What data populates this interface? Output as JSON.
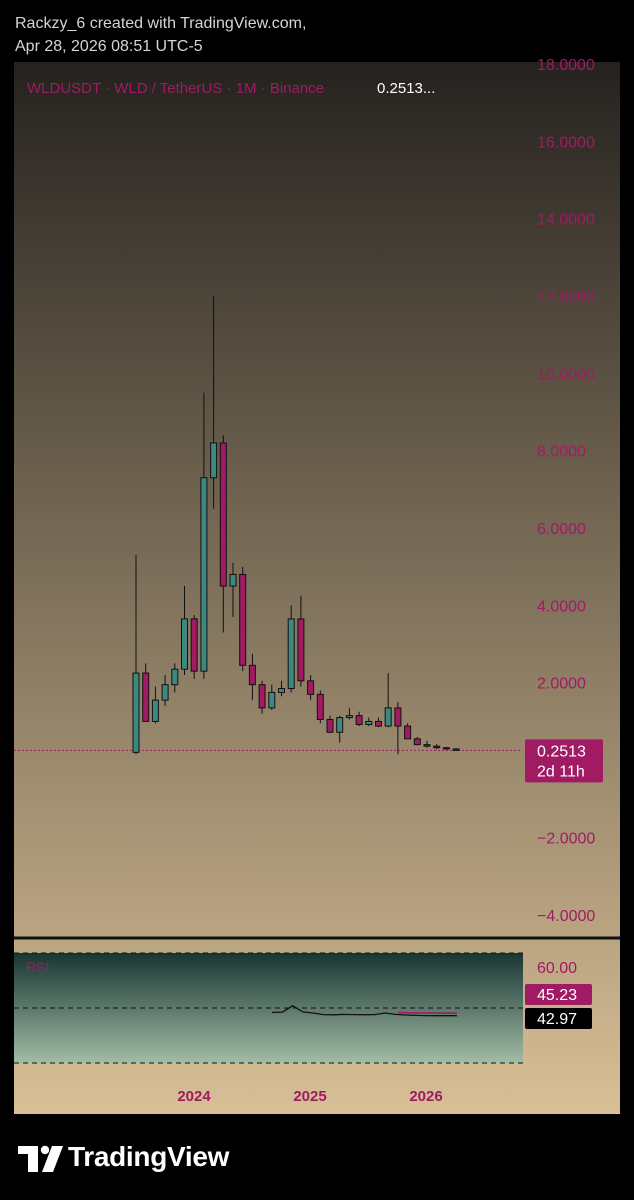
{
  "header": {
    "line1": "Rackzy_6 created with TradingView.com,",
    "line2": "Apr 28, 2026 08:51 UTC-5"
  },
  "legend": {
    "symbol": "WLDUSDT · WLD / TetherUS · 1M · Binance",
    "price": "0.2513..."
  },
  "price_tag": {
    "value": "0.2513",
    "countdown": "2d 11h"
  },
  "rsi_panel": {
    "label": "RSI",
    "level_label": "60.00",
    "tag_upper": "45.23",
    "tag_lower": "42.97"
  },
  "footer": {
    "brand": "TradingView"
  },
  "colors": {
    "up": "#3d8880",
    "down": "#a11a64",
    "accent": "#a11a64",
    "bg_top": "#25221f",
    "bg_bottom": "#d8bf96",
    "rsi_bg_top": "#183532",
    "rsi_bg_bottom": "#a2bca4"
  },
  "chart_data": {
    "type": "candlestick",
    "title": "",
    "x_ticks": [
      "2024",
      "2025",
      "2026"
    ],
    "y_ticks": [
      "18.0000",
      "16.0000",
      "14.0000",
      "12.0000",
      "10.0000",
      "8.0000",
      "6.0000",
      "4.0000",
      "2.0000",
      "−2.0000",
      "−4.0000"
    ],
    "ylim": [
      -4.6,
      18.05
    ],
    "last_price": 0.2513,
    "candles": [
      {
        "o": 0.2,
        "h": 5.3,
        "l": 0.15,
        "c": 2.25
      },
      {
        "o": 2.25,
        "h": 2.5,
        "l": 1.0,
        "c": 1.0
      },
      {
        "o": 1.0,
        "h": 1.9,
        "l": 0.95,
        "c": 1.55
      },
      {
        "o": 1.55,
        "h": 2.2,
        "l": 1.4,
        "c": 1.95
      },
      {
        "o": 1.95,
        "h": 2.5,
        "l": 1.75,
        "c": 2.35
      },
      {
        "o": 2.35,
        "h": 4.5,
        "l": 2.2,
        "c": 3.65
      },
      {
        "o": 3.65,
        "h": 3.75,
        "l": 2.1,
        "c": 2.3
      },
      {
        "o": 2.3,
        "h": 9.5,
        "l": 2.1,
        "c": 7.3
      },
      {
        "o": 7.3,
        "h": 12.0,
        "l": 6.5,
        "c": 8.2
      },
      {
        "o": 8.2,
        "h": 8.4,
        "l": 3.3,
        "c": 4.5
      },
      {
        "o": 4.5,
        "h": 5.1,
        "l": 3.7,
        "c": 4.8
      },
      {
        "o": 4.8,
        "h": 5.0,
        "l": 2.3,
        "c": 2.45
      },
      {
        "o": 2.45,
        "h": 2.75,
        "l": 1.55,
        "c": 1.95
      },
      {
        "o": 1.95,
        "h": 2.05,
        "l": 1.2,
        "c": 1.35
      },
      {
        "o": 1.35,
        "h": 1.95,
        "l": 1.3,
        "c": 1.75
      },
      {
        "o": 1.75,
        "h": 2.05,
        "l": 1.65,
        "c": 1.85
      },
      {
        "o": 1.85,
        "h": 4.0,
        "l": 1.75,
        "c": 3.65
      },
      {
        "o": 3.65,
        "h": 4.25,
        "l": 1.9,
        "c": 2.05
      },
      {
        "o": 2.05,
        "h": 2.2,
        "l": 1.55,
        "c": 1.7
      },
      {
        "o": 1.7,
        "h": 1.8,
        "l": 0.95,
        "c": 1.05
      },
      {
        "o": 1.05,
        "h": 1.15,
        "l": 0.7,
        "c": 0.72
      },
      {
        "o": 0.72,
        "h": 1.15,
        "l": 0.45,
        "c": 1.1
      },
      {
        "o": 1.1,
        "h": 1.35,
        "l": 1.05,
        "c": 1.15
      },
      {
        "o": 1.15,
        "h": 1.25,
        "l": 0.88,
        "c": 0.92
      },
      {
        "o": 0.92,
        "h": 1.1,
        "l": 0.88,
        "c": 1.0
      },
      {
        "o": 1.0,
        "h": 1.1,
        "l": 0.85,
        "c": 0.88
      },
      {
        "o": 0.88,
        "h": 2.25,
        "l": 0.85,
        "c": 1.35
      },
      {
        "o": 1.35,
        "h": 1.5,
        "l": 0.15,
        "c": 0.88
      },
      {
        "o": 0.88,
        "h": 0.95,
        "l": 0.55,
        "c": 0.55
      },
      {
        "o": 0.55,
        "h": 0.6,
        "l": 0.38,
        "c": 0.4
      },
      {
        "o": 0.4,
        "h": 0.5,
        "l": 0.32,
        "c": 0.36
      },
      {
        "o": 0.36,
        "h": 0.42,
        "l": 0.28,
        "c": 0.32
      },
      {
        "o": 0.32,
        "h": 0.34,
        "l": 0.26,
        "c": 0.29
      },
      {
        "o": 0.29,
        "h": 0.31,
        "l": 0.25,
        "c": 0.2513
      }
    ],
    "rsi": {
      "ylim": [
        0,
        100
      ],
      "line": [
        46.0,
        46.2,
        52.0,
        46.5,
        45.5,
        44.0,
        43.8,
        44.2,
        44.0,
        43.9,
        44.0,
        45.5,
        44.2,
        43.6,
        43.3,
        43.1,
        43.0,
        43.0,
        42.97
      ],
      "ma": [
        45.8,
        45.6,
        45.45,
        45.35,
        45.28,
        45.23
      ]
    }
  }
}
